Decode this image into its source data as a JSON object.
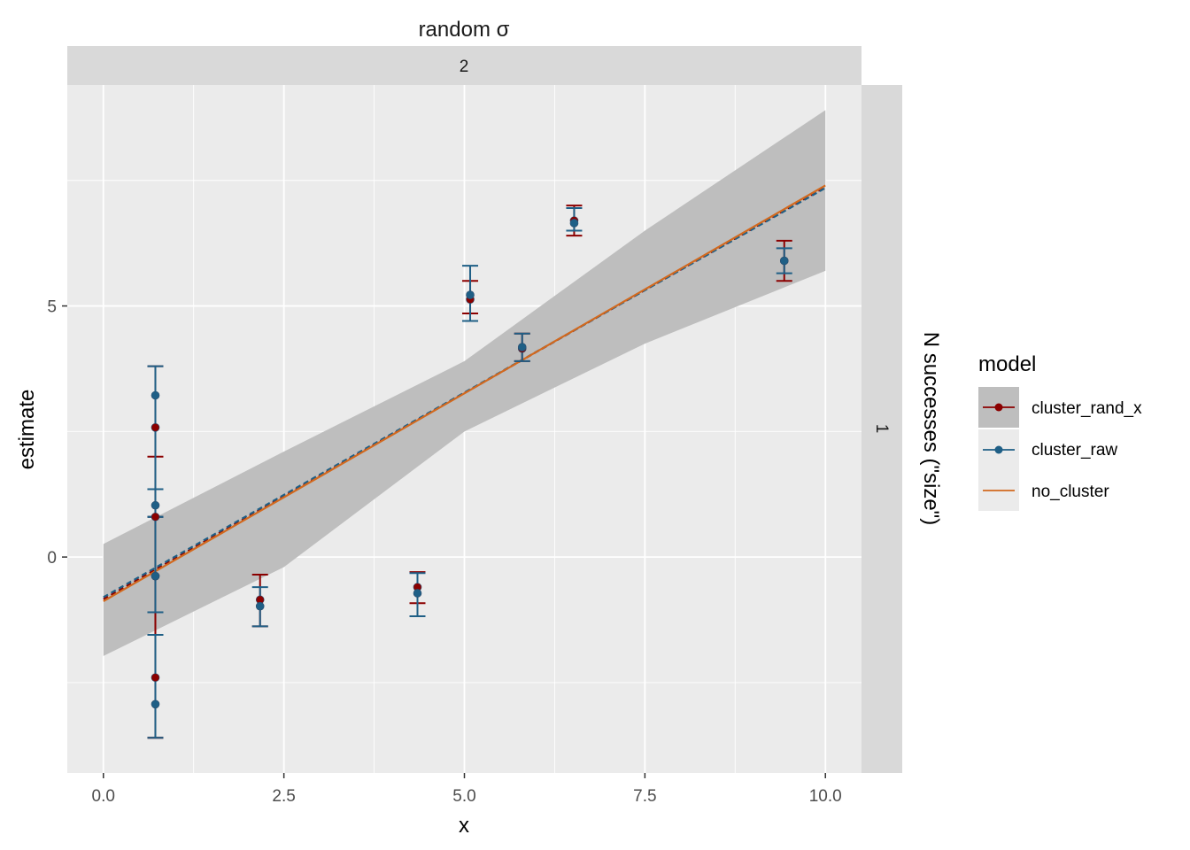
{
  "chart_data": {
    "type": "scatter",
    "facet": {
      "col_title": "random σ",
      "col_value": "2",
      "row_title": "N successes (\"size\")",
      "row_value": "1"
    },
    "xlabel": "x",
    "ylabel": "estimate",
    "xlim": [
      -0.5,
      10.5
    ],
    "ylim": [
      -4.3,
      9.4
    ],
    "x_ticks": [
      0.0,
      2.5,
      5.0,
      7.5,
      10.0
    ],
    "x_tick_labels": [
      "0.0",
      "2.5",
      "5.0",
      "7.5",
      "10.0"
    ],
    "y_ticks": [
      0,
      5
    ],
    "y_tick_labels": [
      "0",
      "5"
    ],
    "grid": true,
    "legend": {
      "title": "model",
      "placement": "right",
      "entries": [
        "cluster_rand_x",
        "cluster_raw",
        "no_cluster"
      ]
    },
    "colors": {
      "cluster_rand_x": "#8b0000",
      "cluster_raw": "#1f5f86",
      "no_cluster": "#d2691e",
      "panel_bg": "#ebebeb",
      "strip_bg": "#d9d9d9",
      "ribbon": "#bebebe",
      "grid": "#ffffff"
    },
    "fit": {
      "no_cluster": {
        "x": [
          0,
          10
        ],
        "y": [
          -0.88,
          7.4
        ]
      },
      "cluster_raw": {
        "x": [
          0,
          10
        ],
        "y": [
          -0.8,
          7.35
        ]
      },
      "cluster_rand_x": {
        "x": [
          0,
          10
        ],
        "y": [
          -0.84,
          7.37
        ]
      },
      "ribbon": {
        "x": [
          0,
          2.5,
          5.0,
          7.5,
          10.0
        ],
        "lower": [
          -1.97,
          -0.2,
          2.5,
          4.25,
          5.7
        ],
        "upper": [
          0.26,
          2.1,
          3.9,
          6.5,
          8.9
        ]
      }
    },
    "series": [
      {
        "name": "cluster_rand_x",
        "points": [
          {
            "x": 0.72,
            "y": 2.58,
            "ymin": -1.1,
            "ymax": 3.8
          },
          {
            "x": 0.72,
            "y": 0.8,
            "ymin": -3.6,
            "ymax": 2.0
          },
          {
            "x": 0.72,
            "y": -0.38,
            "ymin": -1.55,
            "ymax": 1.35
          },
          {
            "x": 0.72,
            "y": -2.4,
            "ymin": -3.6,
            "ymax": 0.8
          },
          {
            "x": 2.17,
            "y": -0.85,
            "ymin": -1.38,
            "ymax": -0.35
          },
          {
            "x": 4.35,
            "y": -0.6,
            "ymin": -0.92,
            "ymax": -0.3
          },
          {
            "x": 5.08,
            "y": 5.13,
            "ymin": 4.85,
            "ymax": 5.5
          },
          {
            "x": 5.8,
            "y": 4.15,
            "ymin": 3.9,
            "ymax": 4.45
          },
          {
            "x": 6.52,
            "y": 6.7,
            "ymin": 6.4,
            "ymax": 7.0
          },
          {
            "x": 9.43,
            "y": 5.9,
            "ymin": 5.5,
            "ymax": 6.3
          }
        ]
      },
      {
        "name": "cluster_raw",
        "points": [
          {
            "x": 0.72,
            "y": 3.22,
            "ymin": 1.35,
            "ymax": 3.8
          },
          {
            "x": 0.72,
            "y": 1.03,
            "ymin": 0.8,
            "ymax": 1.35
          },
          {
            "x": 0.72,
            "y": -0.38,
            "ymin": -1.1,
            "ymax": 0.8
          },
          {
            "x": 0.72,
            "y": -2.93,
            "ymin": -3.6,
            "ymax": -1.55
          },
          {
            "x": 2.17,
            "y": -0.98,
            "ymin": -1.38,
            "ymax": -0.6
          },
          {
            "x": 4.35,
            "y": -0.72,
            "ymin": -1.18,
            "ymax": -0.32
          },
          {
            "x": 5.08,
            "y": 5.22,
            "ymin": 4.7,
            "ymax": 5.8
          },
          {
            "x": 5.8,
            "y": 4.18,
            "ymin": 3.9,
            "ymax": 4.45
          },
          {
            "x": 6.52,
            "y": 6.65,
            "ymin": 6.5,
            "ymax": 6.95
          },
          {
            "x": 9.43,
            "y": 5.9,
            "ymin": 5.65,
            "ymax": 6.15
          }
        ]
      }
    ]
  }
}
